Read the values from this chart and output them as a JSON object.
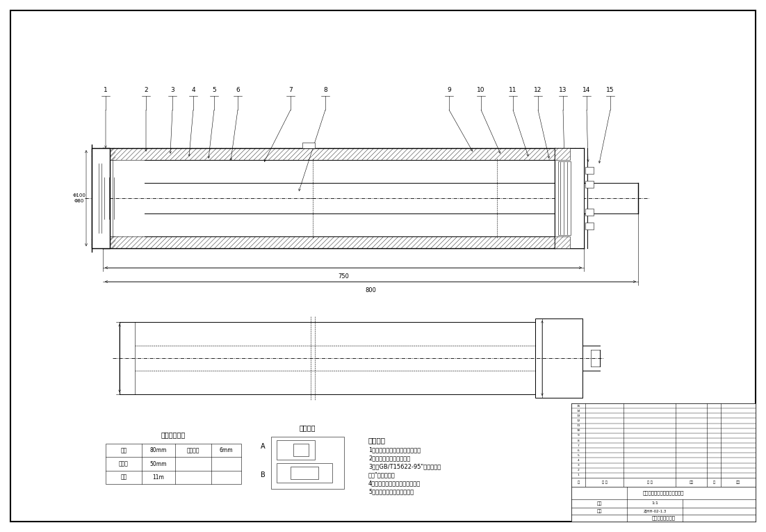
{
  "bg_color": "#ffffff",
  "line_color": "#000000",
  "title_block": {
    "drawing_title": "四自由度圆柱坐标型液压机械手",
    "part_name": "伸缩液压缸装配图",
    "scale": "1:1",
    "drawing_no": "ZJHH-02-1.3"
  },
  "part_labels": [
    "1",
    "2",
    "3",
    "4",
    "5",
    "6",
    "7",
    "8",
    "9",
    "10",
    "11",
    "12",
    "13",
    "14",
    "15"
  ],
  "tech_requirements": [
    "技术要求",
    "1、试验压力下不得有内外渗漏；",
    "2、装配前应清洗各零件；",
    "3、按GB/T15622-95\"油压缸试验",
    "方法\"规定进行；",
    "4、试验完半外部油口加堵保护；",
    "5、外部涂工程机械防锈漆。"
  ],
  "main_params_title": "主要技术参数",
  "main_params": [
    [
      "缸径",
      "80mm",
      "缸筒壁厚",
      "6mm"
    ],
    [
      "活塞杆",
      "50mm",
      "",
      ""
    ],
    [
      "行程",
      "11m",
      "",
      ""
    ]
  ],
  "symbol_title": "剖能符号",
  "dim_text_1": "750",
  "dim_text_2": "800"
}
